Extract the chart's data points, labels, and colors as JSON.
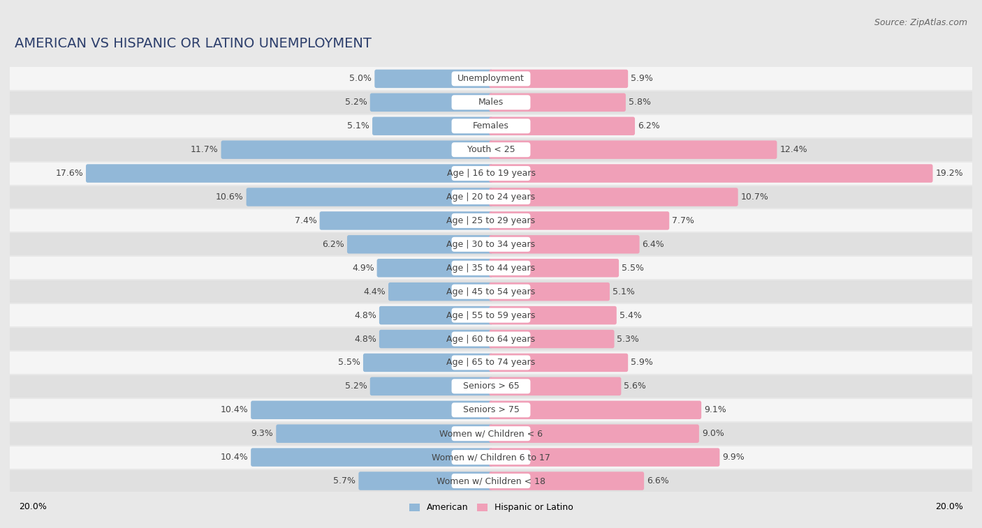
{
  "title": "AMERICAN VS HISPANIC OR LATINO UNEMPLOYMENT",
  "source": "Source: ZipAtlas.com",
  "categories": [
    "Unemployment",
    "Males",
    "Females",
    "Youth < 25",
    "Age | 16 to 19 years",
    "Age | 20 to 24 years",
    "Age | 25 to 29 years",
    "Age | 30 to 34 years",
    "Age | 35 to 44 years",
    "Age | 45 to 54 years",
    "Age | 55 to 59 years",
    "Age | 60 to 64 years",
    "Age | 65 to 74 years",
    "Seniors > 65",
    "Seniors > 75",
    "Women w/ Children < 6",
    "Women w/ Children 6 to 17",
    "Women w/ Children < 18"
  ],
  "american_values": [
    5.0,
    5.2,
    5.1,
    11.7,
    17.6,
    10.6,
    7.4,
    6.2,
    4.9,
    4.4,
    4.8,
    4.8,
    5.5,
    5.2,
    10.4,
    9.3,
    10.4,
    5.7
  ],
  "hispanic_values": [
    5.9,
    5.8,
    6.2,
    12.4,
    19.2,
    10.7,
    7.7,
    6.4,
    5.5,
    5.1,
    5.4,
    5.3,
    5.9,
    5.6,
    9.1,
    9.0,
    9.9,
    6.6
  ],
  "american_color": "#92b8d8",
  "hispanic_color": "#f0a0b8",
  "american_label": "American",
  "hispanic_label": "Hispanic or Latino",
  "axis_max": 20.0,
  "background_color": "#e8e8e8",
  "row_bg_color": "#f5f5f5",
  "row_alt_color": "#e0e0e0",
  "title_fontsize": 14,
  "source_fontsize": 9,
  "label_fontsize": 9,
  "value_fontsize": 9
}
